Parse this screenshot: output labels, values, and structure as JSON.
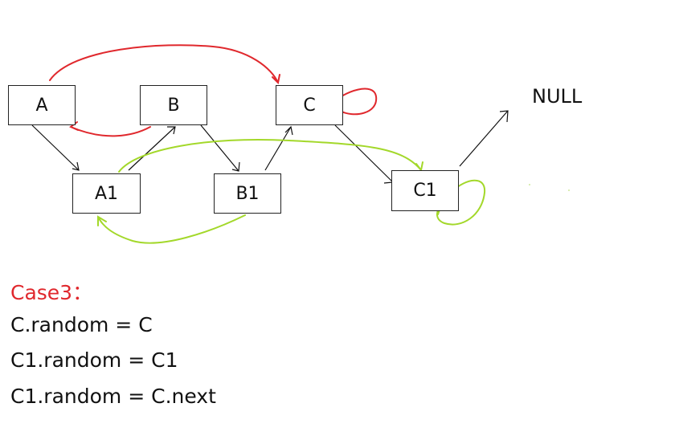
{
  "nodes": {
    "A": "A",
    "B": "B",
    "C": "C",
    "A1": "A1",
    "B1": "B1",
    "C1": "C1",
    "null": "NULL"
  },
  "colors": {
    "next_pointer": "#111111",
    "random_original": "#e0282d",
    "random_copy": "#a3d82a"
  },
  "caption": {
    "title": "Case3：",
    "lines": [
      "C.random = C",
      "C1.random = C1",
      "C1.random = C.next"
    ]
  }
}
